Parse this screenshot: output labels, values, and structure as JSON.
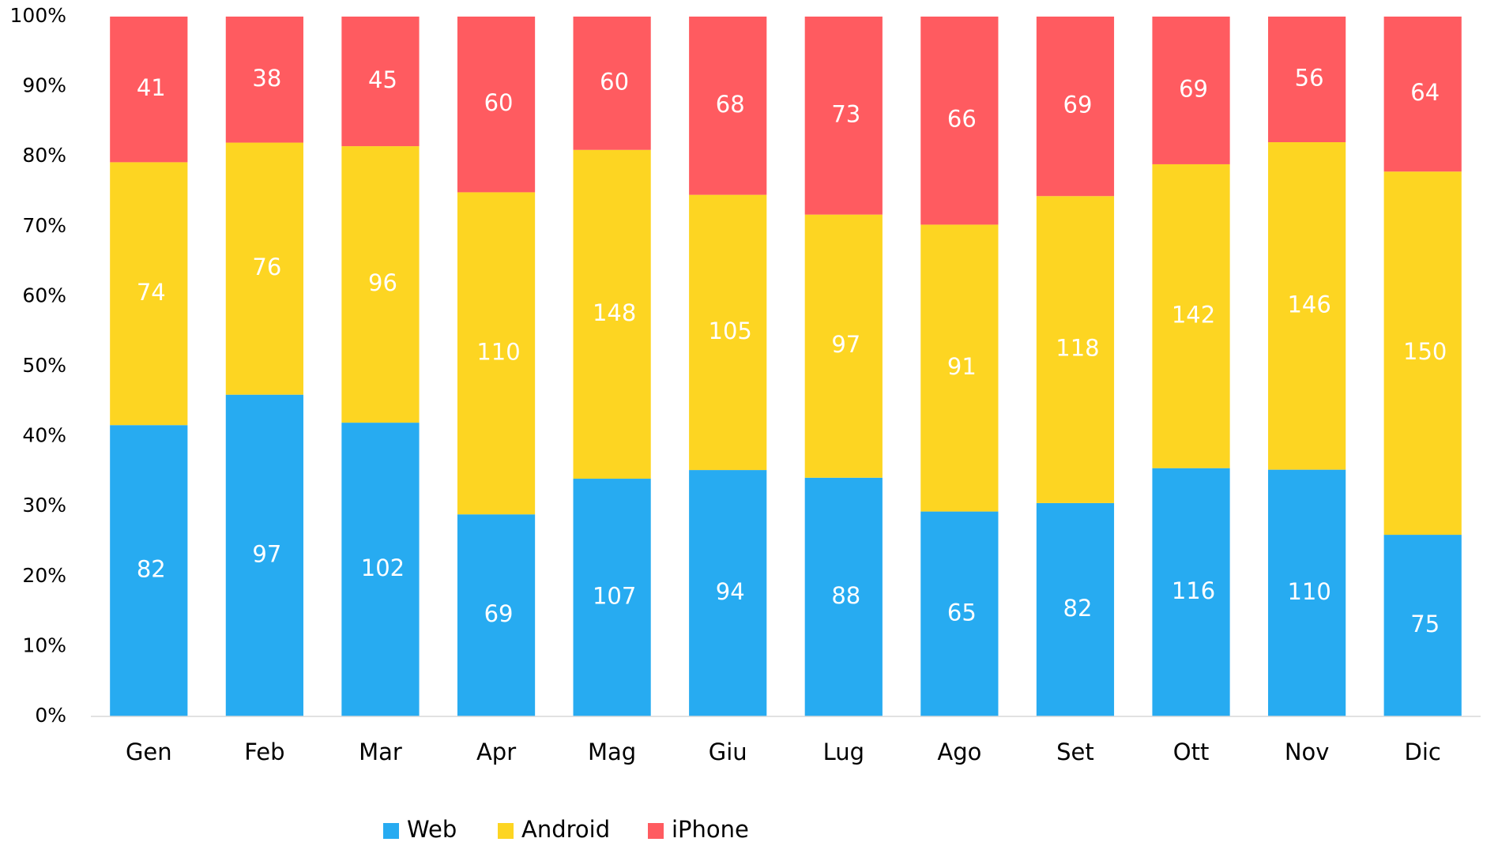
{
  "chart_data": {
    "type": "bar",
    "stacking": "percent",
    "categories": [
      "Gen",
      "Feb",
      "Mar",
      "Apr",
      "Mag",
      "Giu",
      "Lug",
      "Ago",
      "Set",
      "Ott",
      "Nov",
      "Dic"
    ],
    "series": [
      {
        "name": "Web",
        "color": "#27ABF1",
        "values": [
          82,
          97,
          102,
          69,
          107,
          94,
          88,
          65,
          82,
          116,
          110,
          75
        ]
      },
      {
        "name": "Android",
        "color": "#FDD522",
        "values": [
          74,
          76,
          96,
          110,
          148,
          105,
          97,
          91,
          118,
          142,
          146,
          150
        ]
      },
      {
        "name": "iPhone",
        "color": "#FF5B60",
        "values": [
          41,
          38,
          45,
          60,
          60,
          68,
          73,
          66,
          69,
          69,
          56,
          64
        ]
      }
    ],
    "ylim": [
      0,
      100
    ],
    "yticks": [
      {
        "value": 0,
        "label": "0%"
      },
      {
        "value": 10,
        "label": "10%"
      },
      {
        "value": 20,
        "label": "20%"
      },
      {
        "value": 30,
        "label": "30%"
      },
      {
        "value": 40,
        "label": "40%"
      },
      {
        "value": 50,
        "label": "50%"
      },
      {
        "value": 60,
        "label": "60%"
      },
      {
        "value": 70,
        "label": "70%"
      },
      {
        "value": 80,
        "label": "80%"
      },
      {
        "value": 90,
        "label": "90%"
      },
      {
        "value": 100,
        "label": "100%"
      }
    ],
    "grid": false,
    "legend": "bottom"
  }
}
